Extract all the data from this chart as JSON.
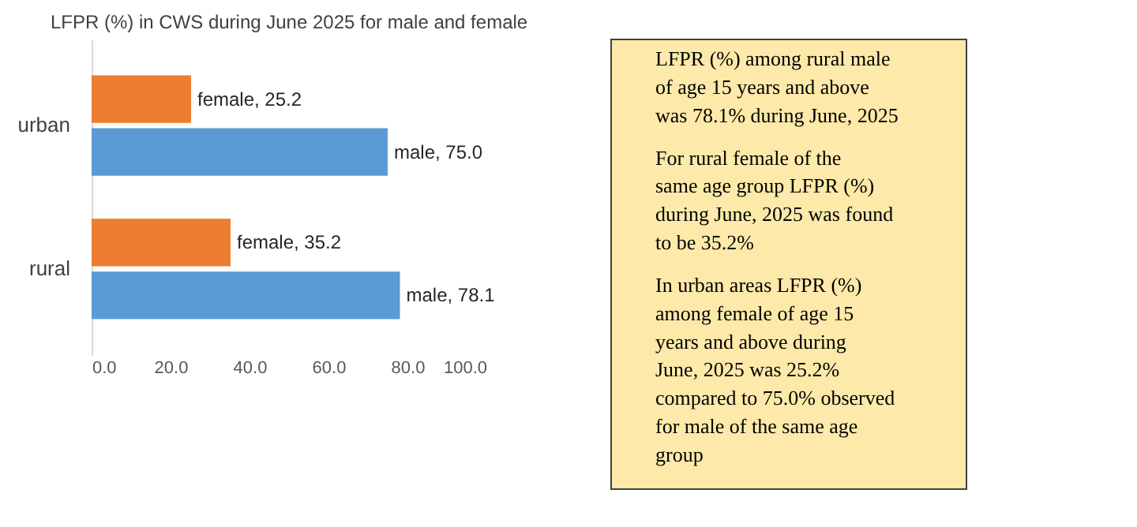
{
  "chart_data": {
    "type": "bar",
    "orientation": "horizontal",
    "title": "LFPR  (%) in CWS during June 2025 for male and female",
    "categories": [
      "urban",
      "rural"
    ],
    "series": [
      {
        "color": "#ed7d31",
        "values": [
          25.2,
          35.2
        ],
        "value_labels": [
          "female, 25.2",
          "female, 35.2"
        ]
      },
      {
        "color": "#5b9bd5",
        "values": [
          75.0,
          78.1
        ],
        "value_labels": [
          "male, 75.0",
          "male, 78.1"
        ]
      }
    ],
    "xlim": [
      0,
      100
    ],
    "xticks": [
      {
        "value": 0,
        "label": "0.0"
      },
      {
        "value": 20,
        "label": "20.0"
      },
      {
        "value": 40,
        "label": "40.0"
      },
      {
        "value": 60,
        "label": "60.0"
      },
      {
        "value": 80,
        "label": "80.0"
      },
      {
        "value": 100,
        "label": "100.0"
      }
    ],
    "grid": false,
    "legend": false,
    "annotations": [
      "LFPR (%) among rural male of age 15 years and above was 78.1% during June, 2025",
      "For rural female of the same age group LFPR (%) during June, 2025 was found to be 35.2%",
      "In urban areas LFPR (%) among female of age 15 years and above during June, 2025 was 25.2% compared to 75.0% observed for male of the same age group"
    ]
  }
}
